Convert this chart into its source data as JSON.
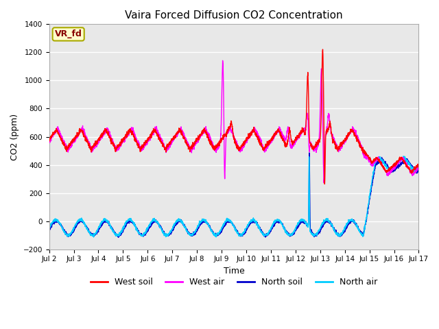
{
  "title": "Vaira Forced Diffusion CO2 Concentration",
  "xlabel": "Time",
  "ylabel": "CO2 (ppm)",
  "xlim": [
    0,
    15
  ],
  "ylim": [
    -200,
    1400
  ],
  "yticks": [
    -200,
    0,
    200,
    400,
    600,
    800,
    1000,
    1200,
    1400
  ],
  "xtick_labels": [
    "Jul 2",
    "Jul 3",
    "Jul 4",
    "Jul 5",
    "Jul 6",
    "Jul 7",
    "Jul 8",
    "Jul 9",
    "Jul 10",
    "Jul 11",
    "Jul 12",
    "Jul 13",
    "Jul 14",
    "Jul 15",
    "Jul 16",
    "Jul 17"
  ],
  "annotation_text": "VR_fd",
  "annotation_bg": "#ffffcc",
  "annotation_border": "#aaaa00",
  "annotation_color": "#880000",
  "west_soil_color": "#ff0000",
  "west_air_color": "#ff00ff",
  "north_soil_color": "#0000cc",
  "north_air_color": "#00ccff",
  "bg_color": "#e8e8e8",
  "legend_labels": [
    "West soil",
    "West air",
    "North soil",
    "North air"
  ],
  "figsize": [
    6.4,
    4.8
  ],
  "dpi": 100
}
